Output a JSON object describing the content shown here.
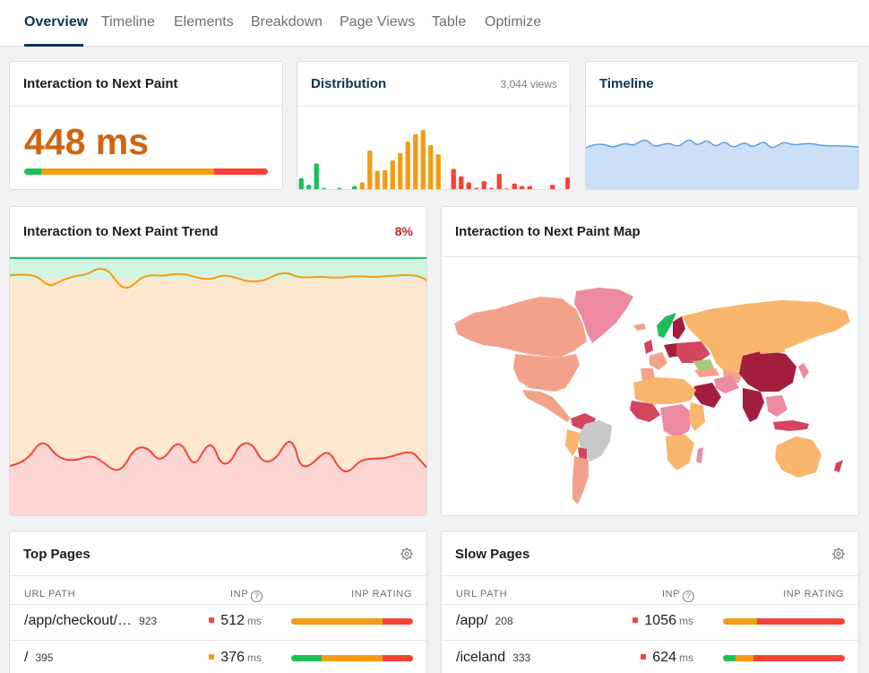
{
  "tabs": [
    {
      "label": "Overview",
      "active": true
    },
    {
      "label": "Timeline"
    },
    {
      "label": "Elements"
    },
    {
      "label": "Breakdown"
    },
    {
      "label": "Page Views"
    },
    {
      "label": "Table"
    },
    {
      "label": "Optimize"
    }
  ],
  "inp_card": {
    "title": "Interaction to Next Paint",
    "value": "448 ms",
    "rating_split": {
      "good": 0.07,
      "needs_improvement": 0.71,
      "poor": 0.22
    }
  },
  "distribution": {
    "title": "Distribution",
    "views": "3,044 views",
    "bar_heights": [
      0.21,
      0.1,
      0.45,
      0.05,
      0.03,
      0.05,
      0.0,
      0.08,
      0.14,
      0.66,
      0.33,
      0.34,
      0.5,
      0.62,
      0.81,
      0.93,
      1.0,
      0.75,
      0.6,
      0.0,
      0.36,
      0.24,
      0.14,
      0.05,
      0.16,
      0.05,
      0.28,
      0.04,
      0.12,
      0.08,
      0.08,
      0.03,
      0.0,
      0.1,
      0.0,
      0.22
    ],
    "bar_colors": [
      "g",
      "g",
      "g",
      "g",
      "g",
      "g",
      "g",
      "g",
      "o",
      "o",
      "o",
      "o",
      "o",
      "o",
      "o",
      "o",
      "o",
      "o",
      "o",
      "r",
      "r",
      "r",
      "r",
      "r",
      "r",
      "r",
      "r",
      "r",
      "r",
      "r",
      "r",
      "r",
      "r",
      "r",
      "r",
      "r"
    ],
    "colors": {
      "good": "#1dbf5a",
      "needs_improvement": "#f39c12",
      "poor": "#f44336"
    }
  },
  "timeline": {
    "title": "Timeline"
  },
  "trend": {
    "title": "Interaction to Next Paint Trend",
    "change": "8%"
  },
  "map": {
    "title": "Interaction to Next Paint Map",
    "colors": {
      "fast": "#1dbf5a",
      "ok": "#f9b56c",
      "medium": "#f4a18a",
      "slow": "#ec8aa2",
      "slower": "#d4455e",
      "slowest": "#a31d3f",
      "no_data": "#c8c8c8"
    }
  },
  "top_pages": {
    "title": "Top Pages",
    "columns": {
      "path": "URL PATH",
      "inp": "INP",
      "rating": "INP RATING"
    },
    "rows": [
      {
        "path": "/app/checkout/…",
        "count": "923",
        "inp": "512",
        "unit": "ms",
        "dot": "#f44336",
        "split": [
          0.0,
          0.75,
          0.25
        ]
      },
      {
        "path": "/",
        "count": "395",
        "inp": "376",
        "unit": "ms",
        "dot": "#f39c12",
        "split": [
          0.25,
          0.5,
          0.25
        ]
      }
    ]
  },
  "slow_pages": {
    "title": "Slow Pages",
    "columns": {
      "path": "URL PATH",
      "inp": "INP",
      "rating": "INP RATING"
    },
    "rows": [
      {
        "path": "/app/",
        "count": "208",
        "inp": "1056",
        "unit": "ms",
        "dot": "#f44336",
        "split": [
          0.0,
          0.28,
          0.72
        ]
      },
      {
        "path": "/iceland",
        "count": "333",
        "inp": "624",
        "unit": "ms",
        "dot": "#f44336",
        "split": [
          0.1,
          0.15,
          0.75
        ]
      }
    ]
  }
}
